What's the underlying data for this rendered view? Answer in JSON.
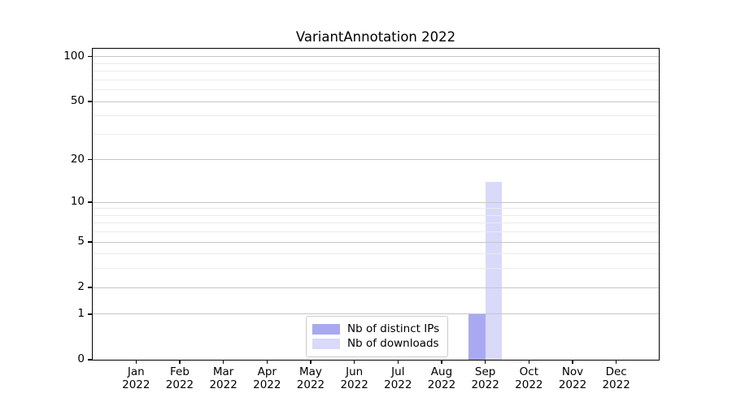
{
  "chart_data": {
    "type": "bar",
    "title": "VariantAnnotation 2022",
    "categories": [
      "Jan",
      "Feb",
      "Mar",
      "Apr",
      "May",
      "Jun",
      "Jul",
      "Aug",
      "Sep",
      "Oct",
      "Nov",
      "Dec"
    ],
    "category_year": "2022",
    "series": [
      {
        "name": "Nb of distinct IPs",
        "color": "#a9a9f2",
        "values": [
          0,
          0,
          0,
          0,
          0,
          0,
          0,
          0,
          1,
          0,
          0,
          0
        ]
      },
      {
        "name": "Nb of downloads",
        "color": "#d9d9f9",
        "values": [
          0,
          0,
          0,
          0,
          0,
          0,
          0,
          0,
          14,
          0,
          0,
          0
        ]
      }
    ],
    "yscale": "log1p",
    "ylim": [
      0,
      113
    ],
    "yticks": [
      0,
      1,
      2,
      5,
      10,
      20,
      50,
      100
    ],
    "yticks_minor": [
      3,
      4,
      6,
      7,
      8,
      9,
      30,
      40,
      60,
      70,
      80,
      90
    ],
    "grid": "horizontal",
    "legend_position": "lower center",
    "xlabel": "",
    "ylabel": ""
  }
}
